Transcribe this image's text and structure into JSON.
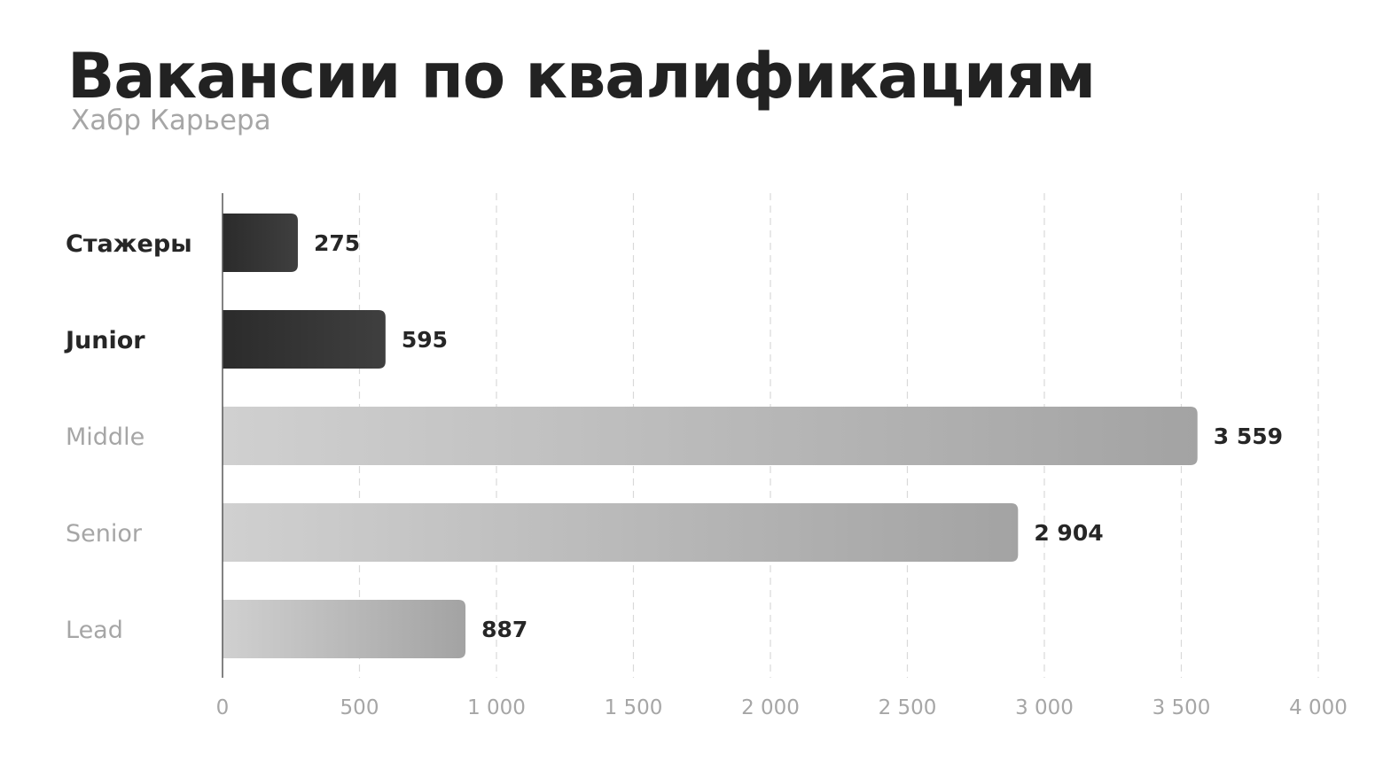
{
  "chart_data": {
    "type": "bar",
    "orientation": "horizontal",
    "title": "Вакансии по квалификациям",
    "subtitle": "Хабр Карьера",
    "categories": [
      "Стажеры",
      "Junior",
      "Middle",
      "Senior",
      "Lead"
    ],
    "values": [
      275,
      595,
      3559,
      2904,
      887
    ],
    "value_labels": [
      "275",
      "595",
      "3 559",
      "2 904",
      "887"
    ],
    "highlighted": [
      true,
      true,
      false,
      false,
      false
    ],
    "xlim": [
      0,
      4000
    ],
    "xticks": [
      0,
      500,
      1000,
      1500,
      2000,
      2500,
      3000,
      3500,
      4000
    ],
    "xtick_labels": [
      "0",
      "500",
      "1 000",
      "1 500",
      "2 000",
      "2 500",
      "3 000",
      "3 500",
      "4 000"
    ],
    "grid": "vertical dashed",
    "legend": "none",
    "colors": {
      "highlight_bar_start": "#2b2b2b",
      "highlight_bar_end": "#3f3f3f",
      "muted_bar_start": "#d0d0d0",
      "muted_bar_end": "#a3a3a3",
      "highlight_label": "#262626",
      "muted_label": "#a6a6a6",
      "grid": "#d9d9d9",
      "axis": "#595959"
    }
  }
}
